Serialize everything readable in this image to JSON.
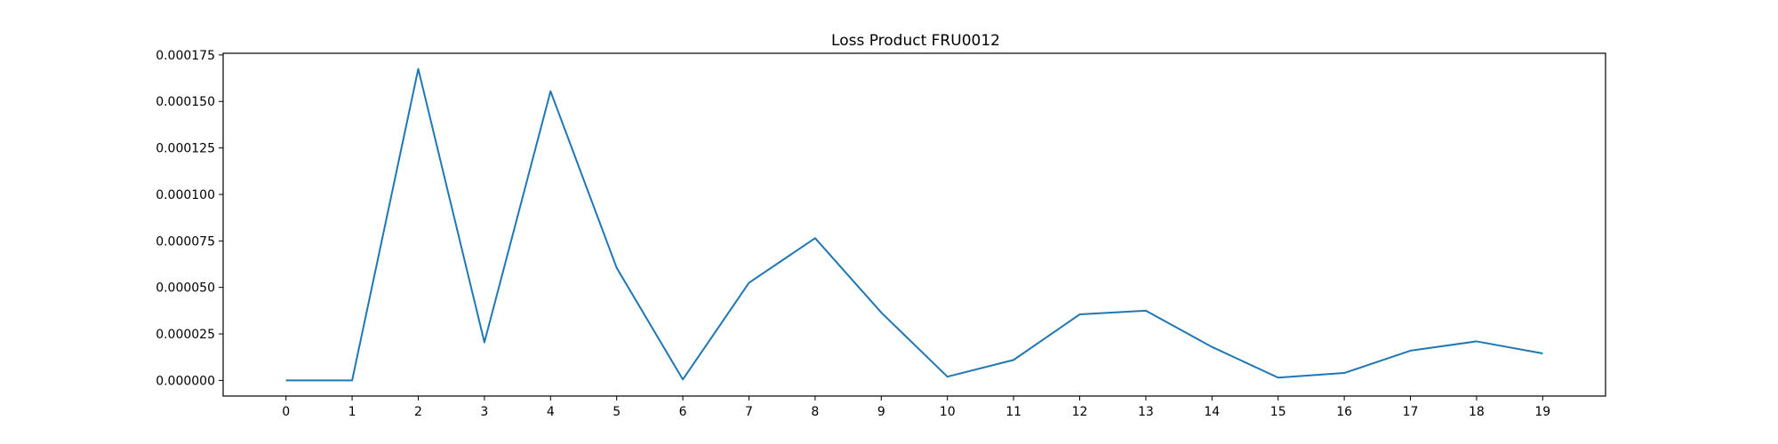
{
  "chart_data": {
    "type": "line",
    "title": "Loss Product FRU0012",
    "xlabel": "",
    "ylabel": "",
    "x": [
      0,
      1,
      2,
      3,
      4,
      5,
      6,
      7,
      8,
      9,
      10,
      11,
      12,
      13,
      14,
      15,
      16,
      17,
      18,
      19
    ],
    "x_tick_labels": [
      "0",
      "1",
      "2",
      "3",
      "4",
      "5",
      "6",
      "7",
      "8",
      "9",
      "10",
      "11",
      "12",
      "13",
      "14",
      "15",
      "16",
      "17",
      "18",
      "19"
    ],
    "y_tick_values": [
      0,
      2.5e-05,
      5e-05,
      7.5e-05,
      0.0001,
      0.000125,
      0.00015,
      0.000175
    ],
    "y_tick_labels": [
      "0.000000",
      "0.000025",
      "0.000050",
      "0.000075",
      "0.000100",
      "0.000125",
      "0.000150",
      "0.000175"
    ],
    "series": [
      {
        "color": "#1f77b4",
        "values": [
          0.0,
          0.0,
          0.0001675,
          2.05e-05,
          0.0001555,
          6.05e-05,
          5e-07,
          5.25e-05,
          7.65e-05,
          3.65e-05,
          2e-06,
          1.1e-05,
          3.55e-05,
          3.75e-05,
          1.8e-05,
          1.5e-06,
          4e-06,
          1.6e-05,
          2.1e-05,
          1.45e-05
        ]
      }
    ],
    "xlim": [
      -0.95,
      19.95
    ],
    "ylim": [
      -8.4e-06,
      0.0001759
    ],
    "grid": false,
    "legend": "none"
  }
}
